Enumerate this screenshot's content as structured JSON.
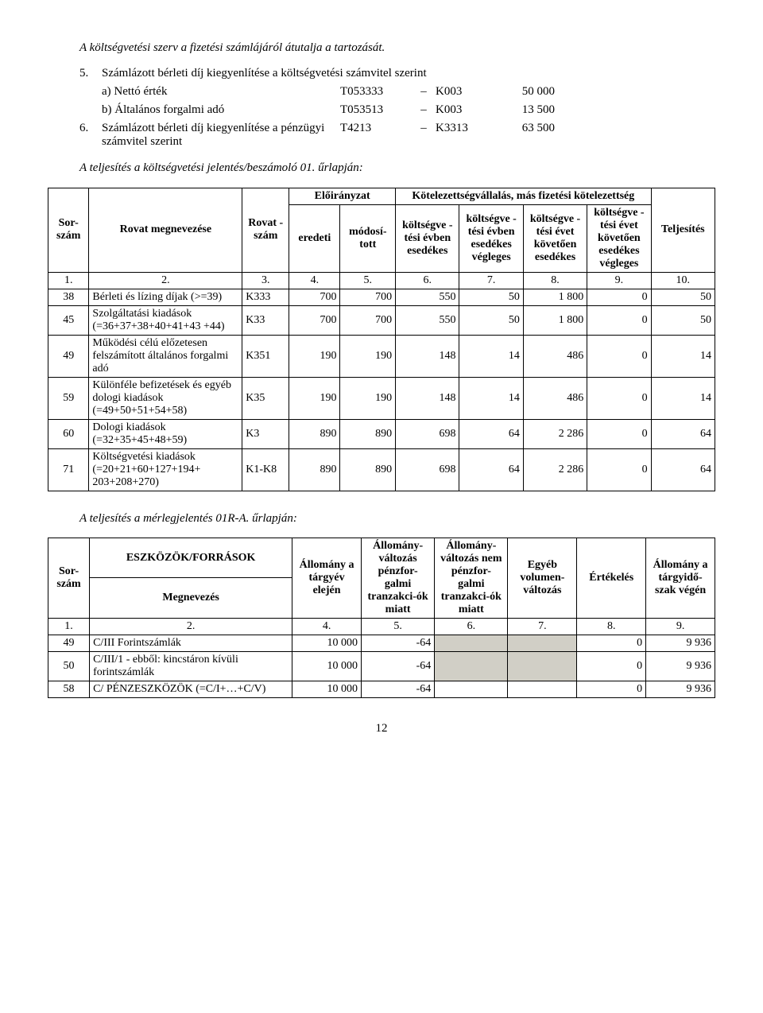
{
  "intro_para": "A költségvetési szerv a fizetési számlájáról átutalja a tartozását.",
  "item5": {
    "num": "5.",
    "text": "Számlázott bérleti díj kiegyenlítése a költségvetési számvitel szerint",
    "a": {
      "label": "a) Nettó érték",
      "code": "T053333",
      "dash": "–",
      "k": "K003",
      "val": "50 000"
    },
    "b": {
      "label": "b) Általános forgalmi adó",
      "code": "T053513",
      "dash": "–",
      "k": "K003",
      "val": "13 500"
    }
  },
  "item6": {
    "num": "6.",
    "text": "Számlázott bérleti díj kiegyenlítése a pénzügyi számvitel szerint",
    "code": "T4213",
    "dash": "–",
    "k": "K3313",
    "val": "63 500"
  },
  "note1": "A teljesítés a költségvetési jelentés/beszámoló 01. űrlapján:",
  "table1": {
    "headers": {
      "sorszam": "Sor-szám",
      "megnev": "Rovat megnevezése",
      "rovat": "Rovat -szám",
      "eloir": "Előirányzat",
      "eredeti": "eredeti",
      "modositott": "módosí-tott",
      "kotel_group": "Kötelezettségvállalás, más fizetési kötelezettség",
      "c6": "költségve -tési évben esedékes",
      "c7": "költségve -tési évben esedékes végleges",
      "c8": "költségve -tési évet követően esedékes",
      "c9": "költségve -tési évet követően esedékes végleges",
      "telj": "Teljesítés"
    },
    "colnums": [
      "1.",
      "2.",
      "3.",
      "4.",
      "5.",
      "6.",
      "7.",
      "8.",
      "9.",
      "10."
    ],
    "rows": [
      {
        "n": "38",
        "megnev": "Bérleti és lízing díjak (>=39)",
        "rovat": "K333",
        "c4": "700",
        "c5": "700",
        "c6": "550",
        "c7": "50",
        "c8": "1 800",
        "c9": "0",
        "c10": "50"
      },
      {
        "n": "45",
        "megnev": "Szolgáltatási kiadások (=36+37+38+40+41+43 +44)",
        "rovat": "K33",
        "c4": "700",
        "c5": "700",
        "c6": "550",
        "c7": "50",
        "c8": "1 800",
        "c9": "0",
        "c10": "50"
      },
      {
        "n": "49",
        "megnev": "Működési célú előzetesen felszámított általános forgalmi adó",
        "rovat": "K351",
        "c4": "190",
        "c5": "190",
        "c6": "148",
        "c7": "14",
        "c8": "486",
        "c9": "0",
        "c10": "14"
      },
      {
        "n": "59",
        "megnev": "Különféle befizetések és egyéb dologi kiadások (=49+50+51+54+58)",
        "rovat": "K35",
        "c4": "190",
        "c5": "190",
        "c6": "148",
        "c7": "14",
        "c8": "486",
        "c9": "0",
        "c10": "14"
      },
      {
        "n": "60",
        "megnev": "Dologi kiadások (=32+35+45+48+59)",
        "rovat": "K3",
        "c4": "890",
        "c5": "890",
        "c6": "698",
        "c7": "64",
        "c8": "2 286",
        "c9": "0",
        "c10": "64"
      },
      {
        "n": "71",
        "megnev": "Költségvetési kiadások (=20+21+60+127+194+ 203+208+270)",
        "rovat": "K1-K8",
        "c4": "890",
        "c5": "890",
        "c6": "698",
        "c7": "64",
        "c8": "2 286",
        "c9": "0",
        "c10": "64"
      }
    ]
  },
  "note2": "A teljesítés a mérlegjelentés 01R-A. űrlapján:",
  "table2": {
    "headers": {
      "sorszam": "Sor-szám",
      "esz": "ESZKÖZÖK/FORRÁSOK",
      "megnev": "Megnevezés",
      "c4": "Állomány a tárgyév elején",
      "c5": "Állomány-változás pénzfor-galmi tranzakci-ók miatt",
      "c6": "Állomány-változás nem pénzfor-galmi tranzakci-ók miatt",
      "c7": "Egyéb volumen-változás",
      "c8": "Értékelés",
      "c9": "Állomány a tárgyidő-szak végén"
    },
    "colnums": [
      "1.",
      "2.",
      "4.",
      "5.",
      "6.",
      "7.",
      "8.",
      "9."
    ],
    "rows": [
      {
        "n": "49",
        "megnev": "C/III Forintszámlák",
        "c4": "10 000",
        "c5": "-64",
        "c6": "",
        "c7": "",
        "c8": "0",
        "c9": "9 936",
        "shade6": true,
        "shade7": true
      },
      {
        "n": "50",
        "megnev": "C/III/1 - ebből: kincstáron kívüli forintszámlák",
        "c4": "10 000",
        "c5": "-64",
        "c6": "",
        "c7": "",
        "c8": "0",
        "c9": "9 936",
        "shade6": true,
        "shade7": true
      },
      {
        "n": "58",
        "megnev": "C/ PÉNZESZKÖZÖK (=C/I+…+C/V)",
        "c4": "10 000",
        "c5": "-64",
        "c6": "",
        "c7": "",
        "c8": "0",
        "c9": "9 936"
      }
    ]
  },
  "page_number": "12"
}
